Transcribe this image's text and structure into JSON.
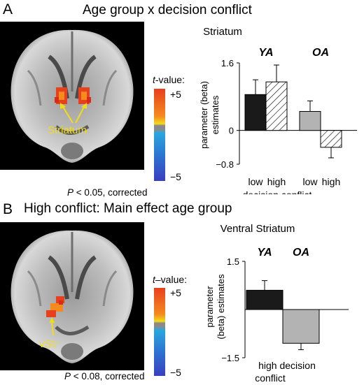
{
  "panel_a": {
    "letter": "A",
    "title": "Age group x decision conflict",
    "brain_label": "Striatum",
    "colorbar_title_t": "t",
    "colorbar_title_rest": "-value:",
    "colorbar_max": "+5",
    "colorbar_min": "−5",
    "p_italic": "P",
    "p_rest": " < 0.05, corrected"
  },
  "panel_b": {
    "letter": "B",
    "title": "High conflict: Main effect age group",
    "brain_label": "vStr",
    "colorbar_title_t": "t",
    "colorbar_title_rest": "–value:",
    "colorbar_max": "+5",
    "colorbar_min": "−5",
    "p_italic": "P",
    "p_rest": " < 0.08, corrected"
  },
  "colors": {
    "ya_bar": "#1a1a1a",
    "oa_bar": "#b3b3b3",
    "hatched_bar_fill": "#ffffff",
    "arrow": "#f2dc1a",
    "label_yellow": "#f2dc1a",
    "blob": "#e8401c"
  },
  "chart_data": [
    {
      "type": "bar",
      "title": "Striatum",
      "ylabel_line1": "parameter (beta)",
      "ylabel_line2": "estimates",
      "ylim": [
        -0.8,
        1.6
      ],
      "yticks": [
        1.6,
        0,
        -0.8
      ],
      "ytick_labels": [
        "1.6",
        "0",
        "−0.8"
      ],
      "groups": [
        {
          "name": "YA",
          "categories": [
            "low",
            "high"
          ],
          "values": [
            0.85,
            1.15
          ],
          "errors": [
            0.35,
            0.4
          ],
          "styles": [
            "solid",
            "hatched"
          ]
        },
        {
          "name": "OA",
          "categories": [
            "low",
            "high"
          ],
          "values": [
            0.45,
            -0.4
          ],
          "errors": [
            0.25,
            0.25
          ],
          "styles": [
            "solid",
            "hatched"
          ]
        }
      ],
      "xlabel": "decision conflict",
      "grid": false
    },
    {
      "type": "bar",
      "title": "Ventral Striatum",
      "ylabel_line1": "parameter",
      "ylabel_line2": "(beta) estimates",
      "ylim": [
        -1.5,
        1.5
      ],
      "yticks": [
        1.5,
        -1.5
      ],
      "ytick_labels": [
        "1.5",
        "−1.5"
      ],
      "categories": [
        "YA",
        "OA"
      ],
      "values": [
        0.6,
        -1.05
      ],
      "errors": [
        0.3,
        0.2
      ],
      "xlabel_line1": "high decision",
      "xlabel_line2": "conflict",
      "grid": false
    }
  ]
}
